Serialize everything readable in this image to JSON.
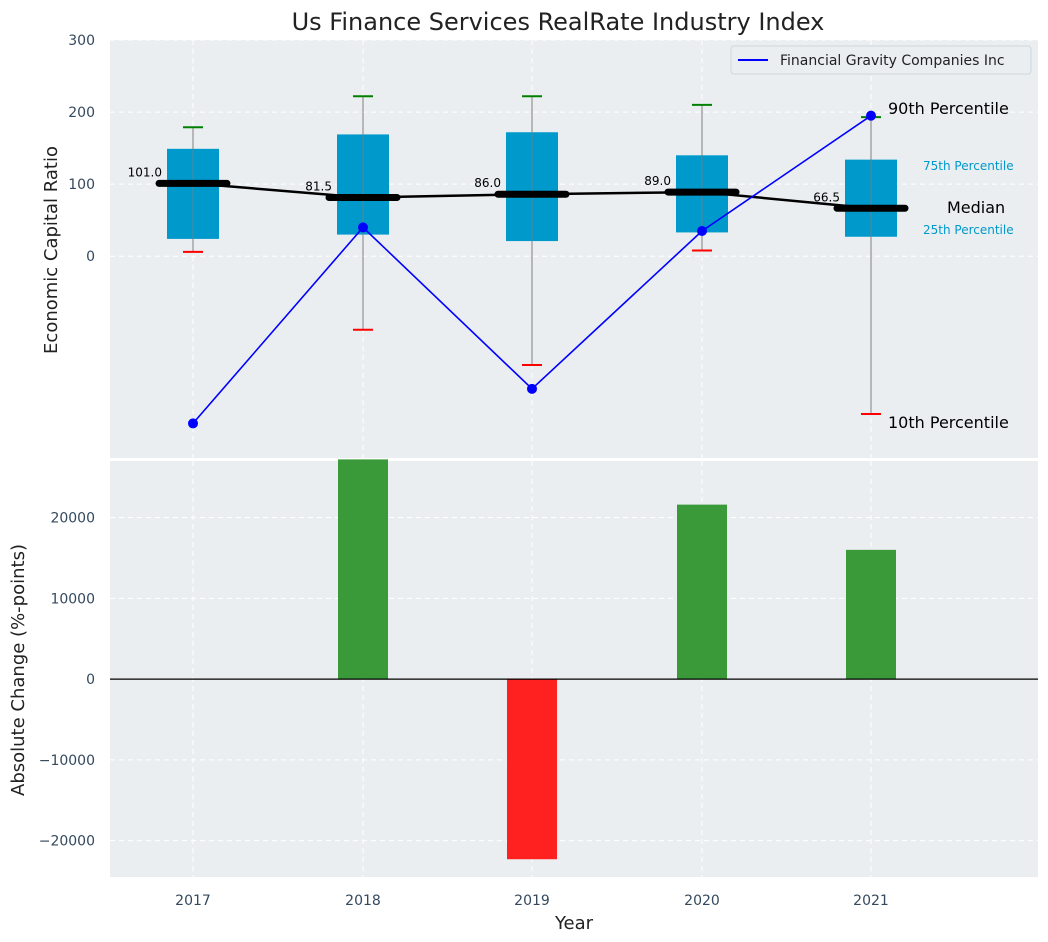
{
  "colors": {
    "box": "#0099cc",
    "whisker": "#808080",
    "cap_high": "#008000",
    "cap_low": "#ff0000",
    "median": "#000000",
    "company": "#0000ff",
    "bar_pos": "#2ca02c",
    "bar_neg": "#ff2020",
    "axes_bg": "#eaeef0",
    "pct_label": "#0099cc"
  },
  "chart_data": [
    {
      "type": "box",
      "title": "Us Finance Services RealRate Industry Index",
      "ylabel": "Economic Capital Ratio",
      "ylim": [
        -280,
        300
      ],
      "yticks": [
        0,
        100,
        200,
        300
      ],
      "categories": [
        "2017",
        "2018",
        "2019",
        "2020",
        "2021"
      ],
      "p10": [
        6,
        -102,
        -151,
        8,
        -219
      ],
      "p25": [
        24,
        30,
        21,
        33,
        27
      ],
      "median": [
        101.0,
        81.5,
        86.0,
        89.0,
        66.5
      ],
      "median_labels": [
        "101.0",
        "81.5",
        "86.0",
        "89.0",
        "66.5"
      ],
      "p75": [
        149,
        169,
        172,
        140,
        134
      ],
      "p90": [
        179,
        222,
        222,
        210,
        193
      ],
      "company": {
        "name": "Financial Gravity Companies Inc",
        "values": [
          -232,
          40,
          -184,
          35,
          195
        ]
      },
      "legend": [
        "Financial Gravity Companies Inc"
      ],
      "legend_position": "top-right",
      "annotations": {
        "p90": "90th Percentile",
        "p75": "75th Percentile",
        "median": "Median",
        "p25": "25th Percentile",
        "p10": "10th Percentile"
      }
    },
    {
      "type": "bar",
      "ylabel": "Absolute Change (%-points)",
      "xlabel": "Year",
      "ylim": [
        -24500,
        27000
      ],
      "yticks": [
        -20000,
        -10000,
        0,
        10000,
        20000
      ],
      "ytick_labels": [
        "−20000",
        "−10000",
        "0",
        "10000",
        "20000"
      ],
      "categories": [
        "2017",
        "2018",
        "2019",
        "2020",
        "2021"
      ],
      "values": [
        0,
        27200,
        -22300,
        21600,
        16000
      ]
    }
  ]
}
